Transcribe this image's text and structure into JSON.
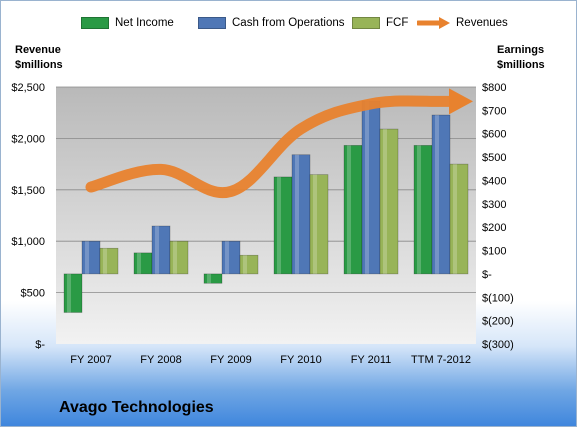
{
  "company": "Avago Technologies",
  "axis_titles": {
    "left": [
      "Revenue",
      "$millions"
    ],
    "right": [
      "Earnings",
      "$millions"
    ]
  },
  "colors": {
    "net_income": "#2a9a45",
    "cash_from_operations": "#4f77b6",
    "fcf": "#98b458",
    "revenues": "#e8822e"
  },
  "chart_data": {
    "type": "bar",
    "categories": [
      "FY 2007",
      "FY 2008",
      "FY 2009",
      "FY 2010",
      "FY 2011",
      "TTM 7-2012"
    ],
    "series": [
      {
        "name": "Net Income",
        "axis": "right",
        "type": "bar",
        "values": [
          -165,
          90,
          -40,
          415,
          550,
          550
        ]
      },
      {
        "name": "Cash from Operations",
        "axis": "right",
        "type": "bar",
        "values": [
          140,
          205,
          140,
          510,
          740,
          680
        ]
      },
      {
        "name": "FCF",
        "axis": "right",
        "type": "bar",
        "values": [
          110,
          140,
          80,
          425,
          620,
          470
        ]
      },
      {
        "name": "Revenues",
        "axis": "left",
        "type": "line",
        "values": [
          1527,
          1699,
          1484,
          2093,
          2336,
          2360
        ]
      }
    ],
    "left_axis": {
      "range": [
        0,
        2500
      ],
      "ticks": [
        "$-",
        "$500",
        "$1,000",
        "$1,500",
        "$2,000",
        "$2,500"
      ]
    },
    "right_axis": {
      "range": [
        -300,
        800
      ],
      "ticks": [
        "$(300)",
        "$(200)",
        "$(100)",
        "$-",
        "$100",
        "$200",
        "$300",
        "$400",
        "$500",
        "$600",
        "$700",
        "$800"
      ]
    },
    "grid": true,
    "legend_position": "top"
  }
}
